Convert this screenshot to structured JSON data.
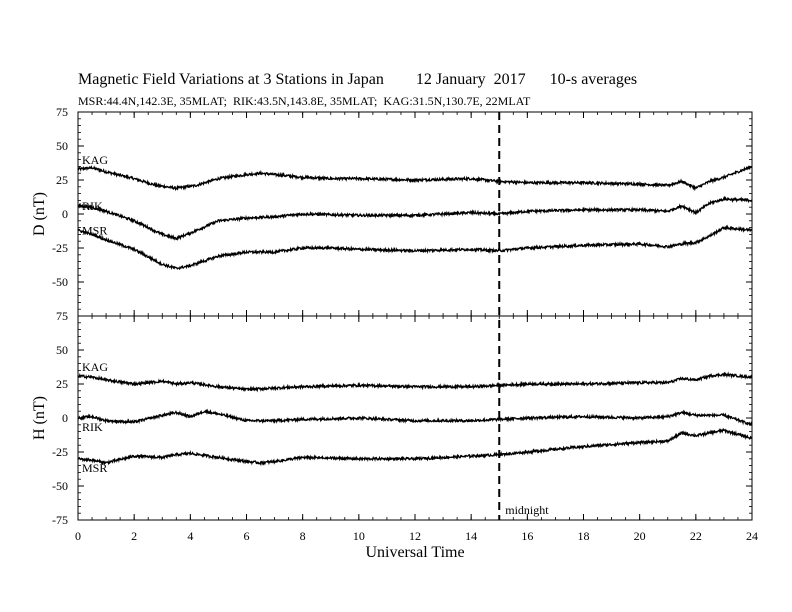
{
  "header": {
    "title": "Magnetic Field Variations at 3 Stations in Japan        12 January  2017      10-s averages",
    "subtitle": "MSR:44.4N,142.3E, 35MLAT;  RIK:43.5N,143.8E, 35MLAT;  KAG:31.5N,130.7E, 22MLAT"
  },
  "chart_data": {
    "type": "line",
    "xlabel": "Universal Time",
    "xlim": [
      0,
      24
    ],
    "x_ticks": [
      0,
      2,
      4,
      6,
      8,
      10,
      12,
      14,
      16,
      18,
      20,
      22,
      24
    ],
    "grid": false,
    "annotation": {
      "x": 15,
      "label": "midnight",
      "style": "dashed"
    },
    "panels": [
      {
        "ylabel": "D (nT)",
        "ylim": [
          -75,
          75
        ],
        "y_ticks": [
          75,
          50,
          25,
          0,
          -25,
          -50,
          -75
        ],
        "series": [
          {
            "name": "KAG",
            "x": [
              0,
              0.5,
              1,
              2,
              2.8,
              3.5,
              4.2,
              5,
              6,
              6.5,
              7,
              8,
              9,
              10,
              12,
              14,
              15,
              16,
              18,
              20,
              21,
              21.5,
              22,
              22.5,
              23,
              24
            ],
            "y": [
              33,
              34,
              31,
              26,
              21,
              19,
              21,
              26,
              29,
              30,
              29,
              27,
              26,
              26,
              25,
              26,
              24,
              23,
              23,
              22,
              21,
              24,
              19,
              24,
              27,
              35
            ]
          },
          {
            "name": "RIK",
            "x": [
              0,
              0.5,
              1,
              2,
              3,
              3.5,
              4,
              5,
              6,
              7,
              8,
              10,
              12,
              14,
              15,
              16,
              18,
              20,
              21,
              21.5,
              22,
              22.5,
              23,
              24
            ],
            "y": [
              6,
              5,
              2,
              -5,
              -15,
              -18,
              -14,
              -5,
              -3,
              -2,
              0,
              -1,
              -1,
              1,
              0,
              2,
              3,
              3,
              2,
              6,
              1,
              8,
              11,
              10
            ]
          },
          {
            "name": "MSR",
            "x": [
              0,
              0.5,
              1,
              2,
              3,
              3.5,
              4,
              5,
              6,
              7,
              8,
              9,
              10,
              12,
              14,
              15,
              16,
              18,
              20,
              21,
              21.5,
              22,
              22.5,
              23,
              24
            ],
            "y": [
              -12,
              -15,
              -19,
              -26,
              -37,
              -40,
              -38,
              -31,
              -28,
              -28,
              -25,
              -25,
              -26,
              -27,
              -26,
              -27,
              -25,
              -23,
              -22,
              -24,
              -22,
              -21,
              -16,
              -10,
              -12
            ]
          }
        ]
      },
      {
        "ylabel": "H (nT)",
        "ylim": [
          -75,
          75
        ],
        "y_ticks": [
          75,
          50,
          25,
          0,
          -25,
          -50,
          -75
        ],
        "series": [
          {
            "name": "KAG",
            "x": [
              0,
              0.5,
              1,
              2,
              3,
              3.5,
              4,
              5,
              6,
              7,
              8,
              10,
              12,
              14,
              15,
              16,
              18,
              20,
              21,
              21.5,
              22,
              22.5,
              23,
              24
            ],
            "y": [
              31,
              30,
              28,
              25,
              27,
              25,
              26,
              23,
              21,
              22,
              23,
              24,
              23,
              23,
              24,
              25,
              25,
              26,
              26,
              29,
              28,
              31,
              32,
              30
            ]
          },
          {
            "name": "RIK",
            "x": [
              0,
              0.5,
              1,
              2,
              3,
              3.5,
              4,
              4.5,
              5,
              6,
              7,
              8,
              10,
              12,
              14,
              15,
              16,
              18,
              20,
              21,
              21.5,
              22,
              23,
              24
            ],
            "y": [
              0,
              1,
              -2,
              -3,
              2,
              4,
              1,
              5,
              3,
              -2,
              -2,
              -1,
              0,
              -2,
              -2,
              -1,
              0,
              1,
              0,
              1,
              4,
              2,
              2,
              -5
            ]
          },
          {
            "name": "MSR",
            "x": [
              0,
              0.5,
              1,
              2,
              3,
              3.5,
              4,
              5,
              6,
              6.5,
              7,
              8,
              10,
              12,
              14,
              15,
              16,
              18,
              20,
              21,
              21.5,
              22,
              23,
              24
            ],
            "y": [
              -30,
              -31,
              -33,
              -28,
              -29,
              -27,
              -26,
              -29,
              -32,
              -33,
              -32,
              -29,
              -30,
              -30,
              -28,
              -27,
              -25,
              -21,
              -18,
              -17,
              -11,
              -13,
              -9,
              -15
            ]
          }
        ]
      }
    ]
  }
}
